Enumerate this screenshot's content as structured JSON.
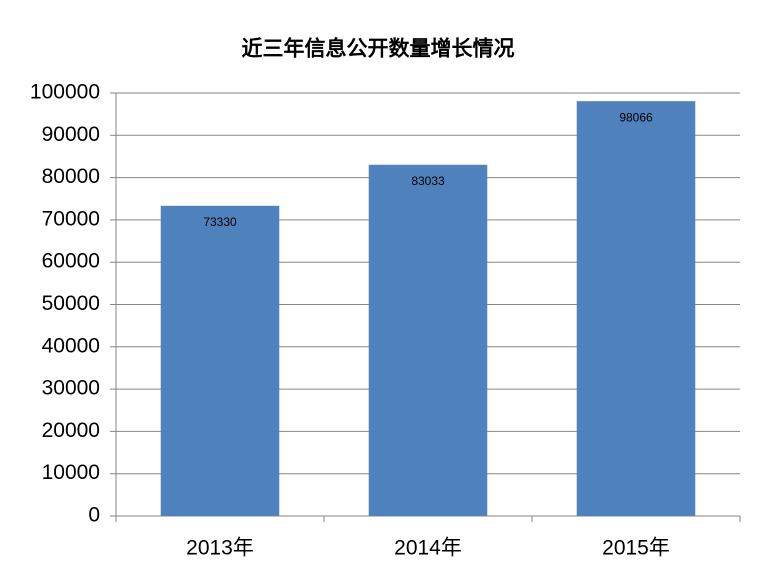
{
  "chart_data": {
    "type": "bar",
    "title": "近三年信息公开数量增长情况",
    "categories": [
      "2013年",
      "2014年",
      "2015年"
    ],
    "values": [
      73330,
      83033,
      98066
    ],
    "color": "#4f81bd",
    "ylim": [
      0,
      100000
    ],
    "yticks": [
      0,
      10000,
      20000,
      30000,
      40000,
      50000,
      60000,
      70000,
      80000,
      90000,
      100000
    ],
    "grid": true
  }
}
